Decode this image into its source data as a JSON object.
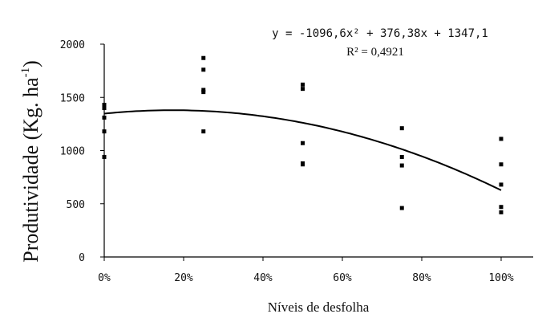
{
  "chart_data": {
    "type": "scatter",
    "xlabel": "Níveis de desfolha",
    "ylabel": "Produtividade (Kg. ha",
    "ylabel_sup": "-1",
    "ylabel_close": ")",
    "xlim": [
      0,
      100
    ],
    "ylim": [
      0,
      2000
    ],
    "x_ticks": [
      0,
      20,
      40,
      60,
      80,
      100
    ],
    "x_tick_labels": [
      "0%",
      "20%",
      "40%",
      "60%",
      "80%",
      "100%"
    ],
    "y_ticks": [
      0,
      500,
      1000,
      1500,
      2000
    ],
    "y_tick_labels": [
      "0",
      "500",
      "1000",
      "1500",
      "2000"
    ],
    "grid": false,
    "series": [
      {
        "type": "scatter",
        "points": [
          {
            "x": 0,
            "y": 1430
          },
          {
            "x": 0,
            "y": 1400
          },
          {
            "x": 0,
            "y": 1310
          },
          {
            "x": 0,
            "y": 1180
          },
          {
            "x": 0,
            "y": 940
          },
          {
            "x": 25,
            "y": 1870
          },
          {
            "x": 25,
            "y": 1760
          },
          {
            "x": 25,
            "y": 1570
          },
          {
            "x": 25,
            "y": 1550
          },
          {
            "x": 25,
            "y": 1180
          },
          {
            "x": 50,
            "y": 1620
          },
          {
            "x": 50,
            "y": 1580
          },
          {
            "x": 50,
            "y": 1070
          },
          {
            "x": 50,
            "y": 880
          },
          {
            "x": 50,
            "y": 870
          },
          {
            "x": 75,
            "y": 1210
          },
          {
            "x": 75,
            "y": 940
          },
          {
            "x": 75,
            "y": 860
          },
          {
            "x": 75,
            "y": 460
          },
          {
            "x": 100,
            "y": 1110
          },
          {
            "x": 100,
            "y": 870
          },
          {
            "x": 100,
            "y": 680
          },
          {
            "x": 100,
            "y": 470
          },
          {
            "x": 100,
            "y": 420
          }
        ]
      },
      {
        "type": "line",
        "trendline": "polynomial",
        "coefficients": {
          "a": -1096.6,
          "b": 376.38,
          "c": 1347.1
        }
      }
    ],
    "annotations": {
      "equation": "y = -1096,6x² + 376,38x + 1347,1",
      "r2": "R² = 0,4921"
    }
  }
}
